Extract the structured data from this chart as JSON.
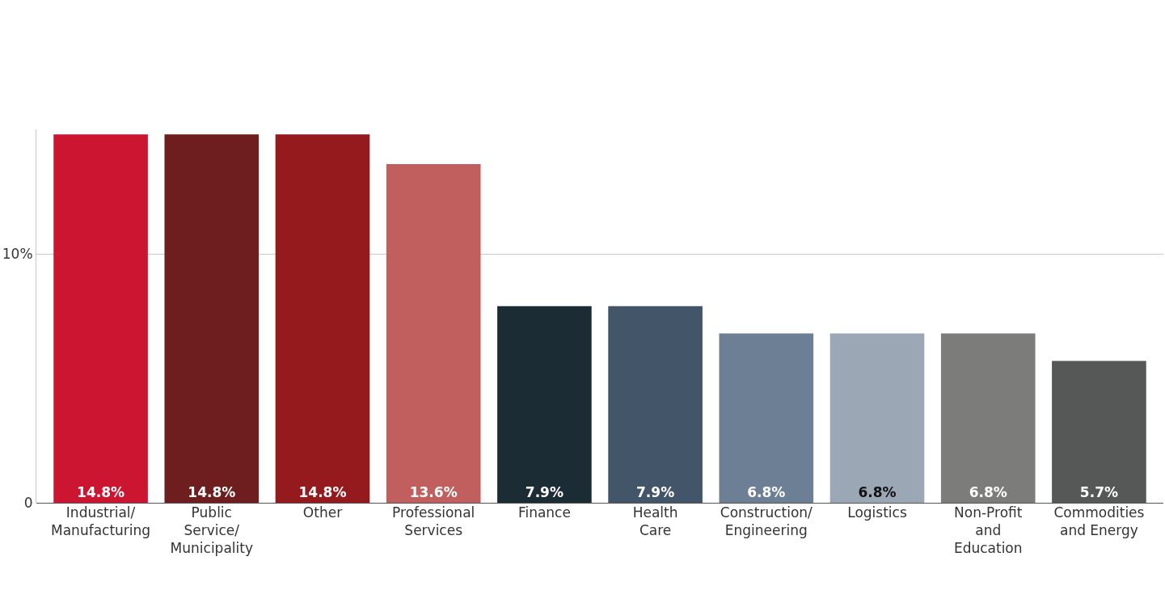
{
  "chart_data": {
    "type": "bar",
    "categories": [
      "Industrial/Manufacturing",
      "Public Service/Municipality",
      "Other",
      "Professional Services",
      "Finance",
      "Health Care",
      "Construction/Engineering",
      "Logistics",
      "Non-Profit and Education",
      "Commodities and Energy"
    ],
    "values": [
      14.8,
      14.8,
      14.8,
      13.6,
      7.9,
      7.9,
      6.8,
      6.8,
      6.8,
      5.7
    ],
    "colors": [
      "#cc1530",
      "#6e1e1e",
      "#951a1e",
      "#c05f5d",
      "#1b2c35",
      "#435568",
      "#6d7f94",
      "#9ba7b4",
      "#7c7c7a",
      "#555857"
    ],
    "value_labels": [
      "14.8%",
      "14.8%",
      "14.8%",
      "13.6%",
      "7.9%",
      "7.9%",
      "6.8%",
      "6.8%",
      "6.8%",
      "5.7%"
    ],
    "yticks": [
      0,
      {
        "value": 10,
        "label": "10%"
      }
    ],
    "ylim": [
      0,
      15
    ],
    "grid": "y"
  }
}
